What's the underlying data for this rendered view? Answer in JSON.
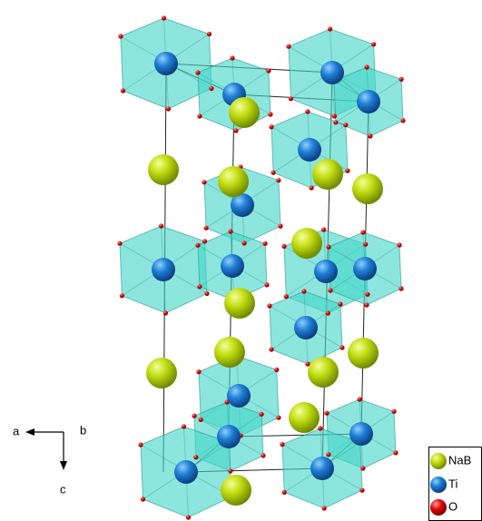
{
  "axes": {
    "a": "a",
    "b": "b",
    "c": "c"
  },
  "legend": [
    "NaB",
    "Ti",
    "O"
  ]
}
